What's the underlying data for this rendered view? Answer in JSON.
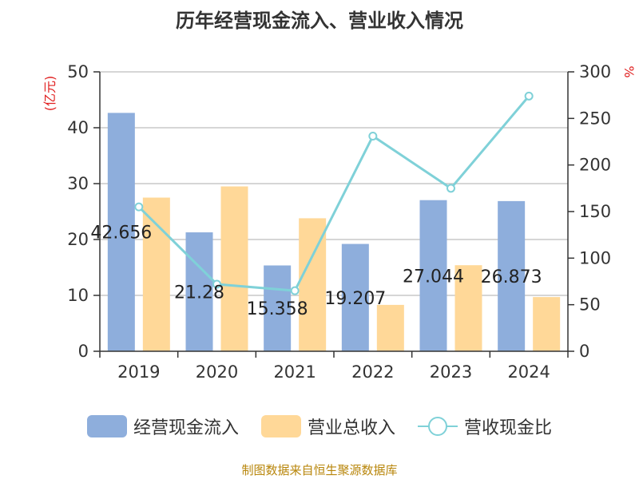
{
  "title": "历年经营现金流入、营业收入情况",
  "source": "制图数据来自恒生聚源数据库",
  "legend": {
    "series1": "经营现金流入",
    "series2": "营业总收入",
    "series3": "营收现金比"
  },
  "colors": {
    "series1": "#8eaedc",
    "series2": "#ffd898",
    "series3": "#7fd1d8",
    "axis_unit": "#e02020",
    "source": "#b8860b"
  },
  "chart_data": {
    "type": "bar",
    "categories": [
      "2019",
      "2020",
      "2021",
      "2022",
      "2023",
      "2024"
    ],
    "y_left_unit": "(亿元)",
    "y_right_unit": "%",
    "y_left_lim": [
      0,
      50
    ],
    "y_left_ticks": [
      0,
      10,
      20,
      30,
      40,
      50
    ],
    "y_right_lim": [
      0,
      300
    ],
    "y_right_ticks": [
      0,
      50,
      100,
      150,
      200,
      250,
      300
    ],
    "series": [
      {
        "name": "经营现金流入",
        "axis": "left",
        "type": "bar",
        "values": [
          42.656,
          21.28,
          15.358,
          19.207,
          27.044,
          26.873
        ],
        "labels": [
          "42.656",
          "21.28",
          "15.358",
          "19.207",
          "27.044",
          "26.873"
        ]
      },
      {
        "name": "营业总收入",
        "axis": "left",
        "type": "bar",
        "values": [
          27.5,
          29.5,
          23.8,
          8.3,
          15.4,
          9.7
        ]
      },
      {
        "name": "营收现金比",
        "axis": "right",
        "type": "line",
        "values": [
          155,
          72,
          65,
          231,
          175,
          274
        ]
      }
    ]
  }
}
